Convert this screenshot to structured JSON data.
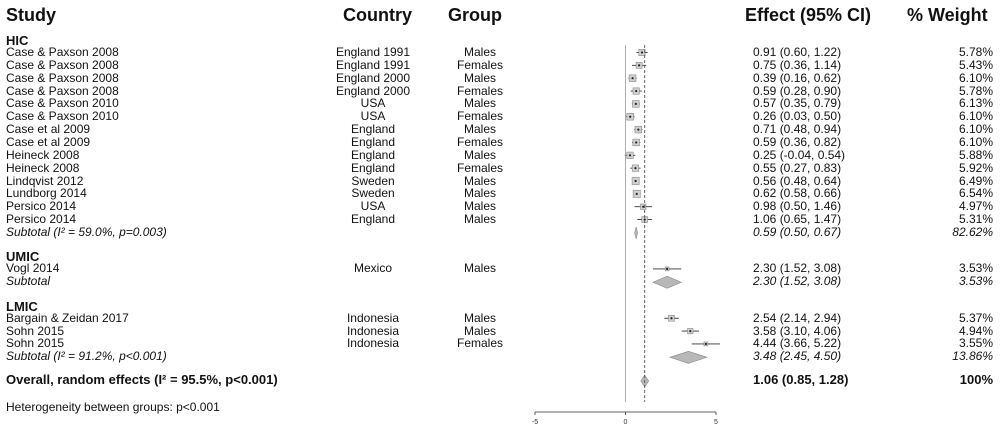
{
  "headers": {
    "study": "Study",
    "country": "Country",
    "group": "Group",
    "effect": "Effect (95% CI)",
    "weight": "% Weight"
  },
  "chart_data": {
    "type": "forest",
    "x_ticks": [
      -5,
      0,
      5
    ],
    "reference_line": 0,
    "overall_line": 1.06,
    "subgroups": [
      {
        "name": "HIC",
        "studies": [
          {
            "study": "Case & Paxson 2008",
            "country": "England 1991",
            "group": "Males",
            "effect": 0.91,
            "lo": 0.6,
            "hi": 1.22,
            "effect_text": "0.91 (0.60, 1.22)",
            "weight": 5.78,
            "weight_text": "5.78%"
          },
          {
            "study": "Case & Paxson 2008",
            "country": "England 1991",
            "group": "Females",
            "effect": 0.75,
            "lo": 0.36,
            "hi": 1.14,
            "effect_text": "0.75 (0.36, 1.14)",
            "weight": 5.43,
            "weight_text": "5.43%"
          },
          {
            "study": "Case & Paxson 2008",
            "country": "England 2000",
            "group": "Males",
            "effect": 0.39,
            "lo": 0.16,
            "hi": 0.62,
            "effect_text": "0.39 (0.16, 0.62)",
            "weight": 6.1,
            "weight_text": "6.10%"
          },
          {
            "study": "Case & Paxson 2008",
            "country": "England 2000",
            "group": "Females",
            "effect": 0.59,
            "lo": 0.28,
            "hi": 0.9,
            "effect_text": "0.59 (0.28, 0.90)",
            "weight": 5.78,
            "weight_text": "5.78%"
          },
          {
            "study": "Case & Paxson 2010",
            "country": "USA",
            "group": "Males",
            "effect": 0.57,
            "lo": 0.35,
            "hi": 0.79,
            "effect_text": "0.57 (0.35, 0.79)",
            "weight": 6.13,
            "weight_text": "6.13%"
          },
          {
            "study": "Case & Paxson 2010",
            "country": "USA",
            "group": "Females",
            "effect": 0.26,
            "lo": 0.03,
            "hi": 0.5,
            "effect_text": "0.26 (0.03, 0.50)",
            "weight": 6.1,
            "weight_text": "6.10%"
          },
          {
            "study": "Case et al 2009",
            "country": "England",
            "group": "Males",
            "effect": 0.71,
            "lo": 0.48,
            "hi": 0.94,
            "effect_text": "0.71 (0.48, 0.94)",
            "weight": 6.1,
            "weight_text": "6.10%"
          },
          {
            "study": "Case et al 2009",
            "country": "England",
            "group": "Females",
            "effect": 0.59,
            "lo": 0.36,
            "hi": 0.82,
            "effect_text": "0.59 (0.36, 0.82)",
            "weight": 6.1,
            "weight_text": "6.10%"
          },
          {
            "study": "Heineck 2008",
            "country": "England",
            "group": "Males",
            "effect": 0.25,
            "lo": -0.04,
            "hi": 0.54,
            "effect_text": "0.25 (-0.04, 0.54)",
            "weight": 5.88,
            "weight_text": "5.88%"
          },
          {
            "study": "Heineck 2008",
            "country": "England",
            "group": "Females",
            "effect": 0.55,
            "lo": 0.27,
            "hi": 0.83,
            "effect_text": "0.55 (0.27, 0.83)",
            "weight": 5.92,
            "weight_text": "5.92%"
          },
          {
            "study": "Lindqvist 2012",
            "country": "Sweden",
            "group": "Males",
            "effect": 0.56,
            "lo": 0.48,
            "hi": 0.64,
            "effect_text": "0.56 (0.48, 0.64)",
            "weight": 6.49,
            "weight_text": "6.49%"
          },
          {
            "study": "Lundborg 2014",
            "country": "Sweden",
            "group": "Males",
            "effect": 0.62,
            "lo": 0.58,
            "hi": 0.66,
            "effect_text": "0.62 (0.58, 0.66)",
            "weight": 6.54,
            "weight_text": "6.54%"
          },
          {
            "study": "Persico 2014",
            "country": "USA",
            "group": "Males",
            "effect": 0.98,
            "lo": 0.5,
            "hi": 1.46,
            "effect_text": "0.98 (0.50, 1.46)",
            "weight": 4.97,
            "weight_text": "4.97%"
          },
          {
            "study": "Persico 2014",
            "country": "England",
            "group": "Males",
            "effect": 1.06,
            "lo": 0.65,
            "hi": 1.47,
            "effect_text": "1.06 (0.65, 1.47)",
            "weight": 5.31,
            "weight_text": "5.31%"
          }
        ],
        "subtotal": {
          "label": "Subtotal (I² = 59.0%, p=0.003)",
          "effect": 0.59,
          "lo": 0.5,
          "hi": 0.67,
          "effect_text": "0.59 (0.50, 0.67)",
          "weight_text": "82.62%"
        }
      },
      {
        "name": "UMIC",
        "studies": [
          {
            "study": "Vogl 2014",
            "country": "Mexico",
            "group": "Males",
            "effect": 2.3,
            "lo": 1.52,
            "hi": 3.08,
            "effect_text": "2.30 (1.52, 3.08)",
            "weight": 3.53,
            "weight_text": "3.53%"
          }
        ],
        "subtotal": {
          "label": "Subtotal",
          "effect": 2.3,
          "lo": 1.52,
          "hi": 3.08,
          "effect_text": "2.30 (1.52, 3.08)",
          "weight_text": "3.53%"
        }
      },
      {
        "name": "LMIC",
        "studies": [
          {
            "study": "Bargain & Zeidan 2017",
            "country": "Indonesia",
            "group": "Males",
            "effect": 2.54,
            "lo": 2.14,
            "hi": 2.94,
            "effect_text": "2.54 (2.14, 2.94)",
            "weight": 5.37,
            "weight_text": "5.37%"
          },
          {
            "study": "Sohn 2015",
            "country": "Indonesia",
            "group": "Males",
            "effect": 3.58,
            "lo": 3.1,
            "hi": 4.06,
            "effect_text": "3.58 (3.10, 4.06)",
            "weight": 4.94,
            "weight_text": "4.94%"
          },
          {
            "study": "Sohn 2015",
            "country": "Indonesia",
            "group": "Females",
            "effect": 4.44,
            "lo": 3.66,
            "hi": 5.22,
            "effect_text": "4.44 (3.66, 5.22)",
            "weight": 3.55,
            "weight_text": "3.55%"
          }
        ],
        "subtotal": {
          "label": "Subtotal (I² = 91.2%, p<0.001)",
          "effect": 3.48,
          "lo": 2.45,
          "hi": 4.5,
          "effect_text": "3.48 (2.45, 4.50)",
          "weight_text": "13.86%"
        }
      }
    ],
    "overall": {
      "label": "Overall, random effects (I² = 95.5%, p<0.001)",
      "effect": 1.06,
      "lo": 0.85,
      "hi": 1.28,
      "effect_text": "1.06 (0.85, 1.28)",
      "weight_text": "100%"
    },
    "footnote": "Heterogeneity between groups: p<0.001"
  }
}
